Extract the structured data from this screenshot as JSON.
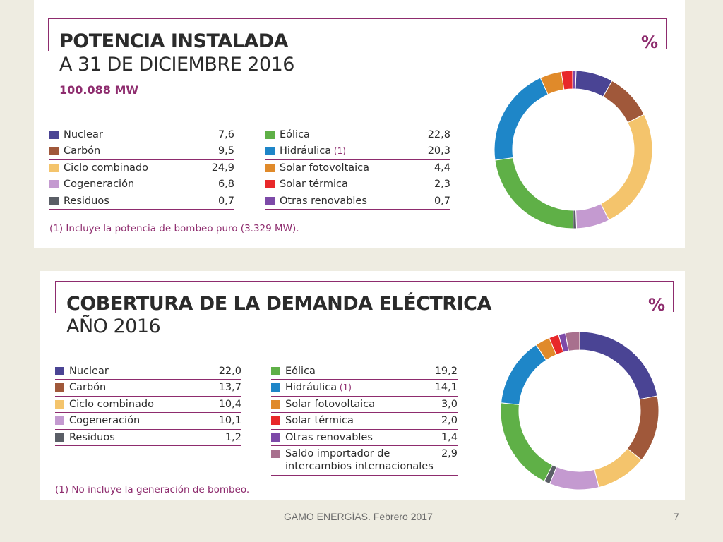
{
  "chart_data": [
    {
      "type": "pie",
      "title": "POTENCIA INSTALADA",
      "subtitle": "A 31 DE DICIEMBRE 2016",
      "unit": "%",
      "total": "100.088 MW",
      "categories": [
        "Nuclear",
        "Carbón",
        "Ciclo combinado",
        "Cogeneración",
        "Residuos",
        "Eólica",
        "Hidráulica",
        "Solar fotovoltaica",
        "Solar térmica",
        "Otras renovables"
      ],
      "values": [
        7.6,
        9.5,
        24.9,
        6.8,
        0.7,
        22.8,
        20.3,
        4.4,
        2.3,
        0.7
      ],
      "value_labels": [
        "7,6",
        "9,5",
        "24,9",
        "6,8",
        "0,7",
        "22,8",
        "20,3",
        "4,4",
        "2,3",
        "0,7"
      ],
      "footnote": "(1) Incluye la potencia de bombeo puro (3.329 MW)."
    },
    {
      "type": "pie",
      "title": "COBERTURA DE LA DEMANDA ELÉCTRICA",
      "subtitle": "AÑO 2016",
      "unit": "%",
      "categories": [
        "Nuclear",
        "Carbón",
        "Ciclo combinado",
        "Cogeneración",
        "Residuos",
        "Eólica",
        "Hidráulica",
        "Solar fotovoltaica",
        "Solar térmica",
        "Otras renovables",
        "Saldo importador de intercambios internacionales"
      ],
      "values": [
        22.0,
        13.7,
        10.4,
        10.1,
        1.2,
        19.2,
        14.1,
        3.0,
        2.0,
        1.4,
        2.9
      ],
      "value_labels": [
        "22,0",
        "13,7",
        "10,4",
        "10,1",
        "1,2",
        "19,2",
        "14,1",
        "3,0",
        "2,0",
        "1,4",
        "2,9"
      ],
      "footnote": "(1) No incluye la generación de bombeo."
    }
  ],
  "colors": {
    "Nuclear": "#4a4494",
    "Carbón": "#a0583a",
    "Ciclo combinado": "#f4c46c",
    "Cogeneración": "#c49ad0",
    "Residuos": "#5a5e66",
    "Eólica": "#5fb047",
    "Hidráulica": "#1e86c8",
    "Solar fotovoltaica": "#e08a2a",
    "Solar térmica": "#e8282a",
    "Otras renovables": "#7d4aa8",
    "Saldo importador de intercambios internacionales": "#a8708e"
  },
  "footnote_marker": "(1)",
  "footer": {
    "text": "GAMO ENERGÍAS. Febrero 2017",
    "page": "7"
  }
}
